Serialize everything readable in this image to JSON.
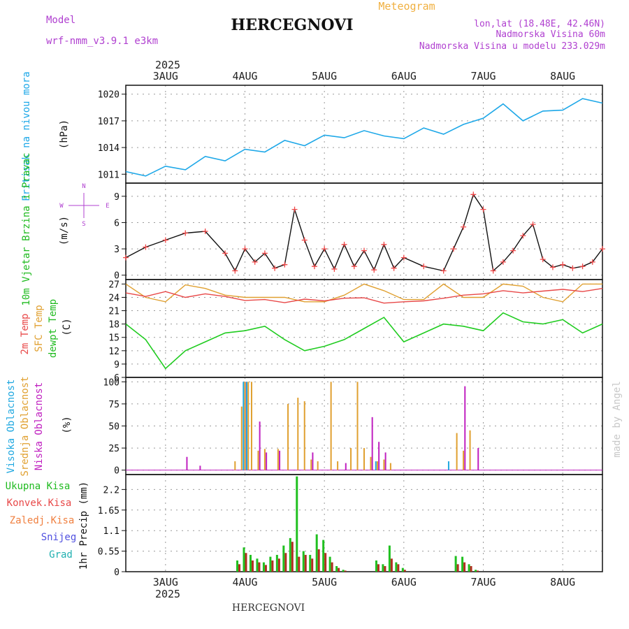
{
  "header": {
    "title": "HERCEGNOVI",
    "subtitle": "Meteogram",
    "model_label": "Model",
    "model_name": "wrf-nmm_v3.9.1  e3km",
    "lonlat": "lon,lat (18.48E, 42.46N)",
    "elevation": "Nadmorska Visina 60m",
    "model_elevation": "Nadmorska Visina u modelu 233.029m",
    "watermark": "made by Angel",
    "footer": "HERCEGNOVI"
  },
  "colors": {
    "pressure": "#1ea8e8",
    "wind_speed": "#111111",
    "wind_points": "#f04848",
    "temp_2m": "#e84848",
    "temp_sfc": "#e0a030",
    "dewpoint": "#20cc20",
    "cloud_high": "#20a8e0",
    "cloud_mid": "#e0a030",
    "cloud_low": "#c020c0",
    "precip_total": "#20c020",
    "precip_conv": "#b03020",
    "accent_purple": "#b040d0"
  },
  "time_axis": {
    "year": "2025",
    "days": [
      "3AUG",
      "4AUG",
      "5AUG",
      "6AUG",
      "7AUG",
      "8AUG"
    ],
    "start": 0,
    "end": 144,
    "day_ticks": [
      12,
      36,
      60,
      84,
      108,
      132
    ]
  },
  "chart_data": [
    {
      "type": "line",
      "id": "pressure",
      "title": "Pritisak na nivou mora",
      "ylabel": "(hPa)",
      "ylim": [
        1010,
        1021
      ],
      "yticks": [
        1011,
        1014,
        1017,
        1020
      ],
      "x": [
        0,
        6,
        12,
        18,
        24,
        30,
        36,
        42,
        48,
        54,
        60,
        66,
        72,
        78,
        84,
        90,
        96,
        102,
        108,
        114,
        120,
        126,
        132,
        138,
        144
      ],
      "series": [
        {
          "name": "Pressure",
          "values": [
            1011.3,
            1010.8,
            1011.9,
            1011.5,
            1013.0,
            1012.5,
            1013.8,
            1013.5,
            1014.8,
            1014.2,
            1015.4,
            1015.1,
            1015.9,
            1015.3,
            1015.0,
            1016.2,
            1015.5,
            1016.6,
            1017.3,
            1018.9,
            1017.0,
            1018.1,
            1018.2,
            1019.5,
            1019.0
          ]
        }
      ]
    },
    {
      "type": "line",
      "id": "wind",
      "title": "10m Vjetar Brzina i Pravac",
      "ylabel": "(m/s)",
      "compass": "N",
      "compass_w": "W",
      "compass_e": "E",
      "compass_s": "S",
      "ylim": [
        -0.5,
        10.5
      ],
      "yticks": [
        0,
        3,
        6,
        9
      ],
      "x": [
        0,
        6,
        12,
        18,
        24,
        30,
        33,
        36,
        39,
        42,
        45,
        48,
        51,
        54,
        57,
        60,
        63,
        66,
        69,
        72,
        75,
        78,
        81,
        84,
        90,
        96,
        99,
        102,
        105,
        108,
        111,
        114,
        117,
        120,
        123,
        126,
        129,
        132,
        135,
        138,
        141,
        144
      ],
      "series": [
        {
          "name": "Wind speed",
          "values": [
            2.0,
            3.2,
            4.0,
            4.8,
            5.0,
            2.5,
            0.5,
            3.0,
            1.5,
            2.5,
            0.8,
            1.2,
            7.5,
            4.0,
            1.0,
            3.0,
            0.7,
            3.5,
            1.0,
            2.8,
            0.6,
            3.5,
            0.8,
            2.0,
            1.0,
            0.5,
            3.0,
            5.5,
            9.2,
            7.5,
            0.5,
            1.5,
            2.8,
            4.5,
            5.8,
            1.8,
            0.9,
            1.2,
            0.8,
            1.0,
            1.5,
            3.0
          ]
        }
      ]
    },
    {
      "type": "line",
      "id": "temperature",
      "title": "2m Temp",
      "title2": "SFC Temp",
      "title3": "dewpt Temp",
      "ylabel": "(C)",
      "ylim": [
        6,
        28
      ],
      "yticks": [
        6,
        9,
        12,
        15,
        18,
        21,
        24,
        27
      ],
      "x": [
        0,
        6,
        12,
        18,
        24,
        30,
        36,
        42,
        48,
        54,
        60,
        66,
        72,
        78,
        84,
        90,
        96,
        102,
        108,
        114,
        120,
        126,
        132,
        138,
        144
      ],
      "series": [
        {
          "name": "2m Temp",
          "values": [
            25.0,
            24.2,
            25.3,
            24.0,
            24.8,
            24.2,
            23.3,
            23.5,
            22.8,
            23.6,
            23.2,
            23.8,
            23.9,
            22.7,
            23.0,
            23.2,
            23.8,
            24.5,
            24.8,
            25.5,
            25.0,
            25.4,
            25.8,
            25.3,
            26.0
          ]
        },
        {
          "name": "SFC Temp",
          "values": [
            27.0,
            24.0,
            23.0,
            26.8,
            26.0,
            24.5,
            24.0,
            24.0,
            24.0,
            23.0,
            23.0,
            24.5,
            27.0,
            25.5,
            23.5,
            23.5,
            27.0,
            24.0,
            24.0,
            27.0,
            26.5,
            24.0,
            23.0,
            27.0,
            27.0
          ]
        },
        {
          "name": "dewpt Temp",
          "values": [
            18.0,
            14.5,
            8.0,
            12.0,
            14.0,
            16.0,
            16.5,
            17.5,
            14.5,
            12.0,
            13.0,
            14.5,
            17.0,
            19.5,
            14.0,
            16.0,
            18.0,
            17.5,
            16.5,
            20.5,
            18.5,
            18.0,
            19.0,
            16.0,
            18.0
          ]
        }
      ]
    },
    {
      "type": "bar",
      "id": "clouds",
      "title": "Visoka Oblacnost",
      "title2": "Srednja Oblacnost",
      "title3": "Niska Oblacnost",
      "ylabel": "(%)",
      "ylim": [
        -5,
        105
      ],
      "yticks": [
        0,
        25,
        50,
        75,
        100
      ],
      "x": [
        18,
        22,
        33,
        35,
        36,
        37,
        38,
        40,
        42,
        46,
        49,
        52,
        54,
        56,
        58,
        62,
        64,
        66,
        68,
        70,
        72,
        74,
        76,
        78,
        80,
        98,
        100,
        102,
        104,
        106
      ],
      "series": [
        {
          "name": "High",
          "values": [
            0,
            0,
            0,
            0,
            100,
            100,
            0,
            0,
            0,
            0,
            0,
            0,
            0,
            0,
            0,
            0,
            0,
            0,
            0,
            0,
            0,
            0,
            10,
            0,
            0,
            10,
            0,
            0,
            0,
            0
          ]
        },
        {
          "name": "Mid",
          "values": [
            0,
            0,
            10,
            72,
            100,
            100,
            100,
            22,
            24,
            24,
            75,
            82,
            78,
            12,
            10,
            100,
            10,
            0,
            25,
            100,
            25,
            15,
            10,
            12,
            8,
            0,
            42,
            22,
            45,
            0
          ]
        },
        {
          "name": "Low",
          "values": [
            15,
            5,
            0,
            0,
            100,
            0,
            0,
            55,
            20,
            22,
            0,
            0,
            0,
            20,
            0,
            0,
            0,
            8,
            0,
            0,
            0,
            60,
            32,
            20,
            0,
            0,
            0,
            95,
            0,
            25
          ]
        }
      ]
    },
    {
      "type": "bar",
      "id": "precip",
      "title": "Ukupna Kisa",
      "title2": "Konvek.Kisa",
      "title3": "Zaledj.Kisa",
      "title4": "Snijeg",
      "title5": "Grad",
      "ylabel": "1hr Precip (mm)",
      "ylim": [
        0,
        2.6
      ],
      "yticks": [
        0,
        0.55,
        1.1,
        1.65,
        2.2
      ],
      "ytick_labels": [
        "0",
        "0.55",
        "1.1",
        "1.65",
        "2.2"
      ],
      "x": [
        34,
        36,
        38,
        40,
        42,
        44,
        46,
        48,
        50,
        52,
        54,
        56,
        58,
        60,
        62,
        64,
        66,
        68,
        70,
        76,
        78,
        80,
        82,
        84,
        100,
        102,
        104,
        106
      ],
      "series": [
        {
          "name": "Total",
          "values": [
            0.3,
            0.65,
            0.45,
            0.35,
            0.25,
            0.4,
            0.45,
            0.7,
            0.9,
            2.55,
            0.55,
            0.45,
            1.0,
            0.85,
            0.4,
            0.15,
            0.05,
            0.0,
            0.0,
            0.3,
            0.2,
            0.7,
            0.25,
            0.1,
            0.42,
            0.4,
            0.2,
            0.05
          ]
        },
        {
          "name": "Convective",
          "values": [
            0.2,
            0.5,
            0.3,
            0.25,
            0.18,
            0.3,
            0.35,
            0.5,
            0.8,
            0.4,
            0.45,
            0.35,
            0.6,
            0.5,
            0.25,
            0.1,
            0.03,
            0.0,
            0.0,
            0.2,
            0.15,
            0.35,
            0.2,
            0.05,
            0.2,
            0.25,
            0.15,
            0.03
          ]
        }
      ]
    }
  ]
}
